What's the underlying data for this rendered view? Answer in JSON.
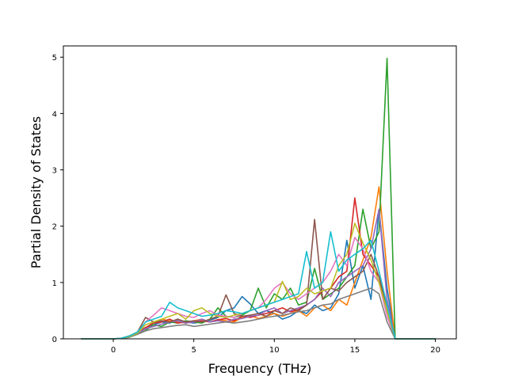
{
  "chart_data": {
    "type": "line",
    "title": "",
    "xlabel": "Frequency (THz)",
    "ylabel": "Partial Density of States",
    "xlim": [
      -3.1,
      21.3
    ],
    "ylim": [
      0,
      5.2
    ],
    "xticks": [
      0,
      5,
      10,
      15,
      20
    ],
    "yticks": [
      0,
      1,
      2,
      3,
      4,
      5
    ],
    "xtick_labels": [
      "0",
      "5",
      "10",
      "15",
      "20"
    ],
    "ytick_labels": [
      "0",
      "1",
      "2",
      "3",
      "4",
      "5"
    ],
    "grid": false,
    "legend": "none",
    "x": [
      -2,
      -1,
      0,
      0.5,
      1,
      1.5,
      2,
      2.5,
      3,
      3.5,
      4,
      4.5,
      5,
      5.5,
      6,
      6.5,
      7,
      7.5,
      8,
      8.5,
      9,
      9.5,
      10,
      10.5,
      11,
      11.5,
      12,
      12.5,
      13,
      13.5,
      14,
      14.5,
      15,
      15.5,
      16,
      16.5,
      17,
      17.5,
      18,
      19,
      20
    ],
    "series": [
      {
        "color": "#1f77b4",
        "values": [
          0,
          0,
          0,
          0.01,
          0.05,
          0.12,
          0.2,
          0.25,
          0.3,
          0.28,
          0.35,
          0.3,
          0.28,
          0.3,
          0.33,
          0.38,
          0.5,
          0.55,
          0.75,
          0.62,
          0.45,
          0.5,
          0.45,
          0.35,
          0.4,
          0.5,
          0.45,
          0.6,
          0.5,
          0.55,
          0.8,
          1.75,
          0.9,
          1.3,
          0.7,
          2.3,
          0.9,
          0,
          0,
          0,
          0
        ]
      },
      {
        "color": "#ff7f0e",
        "values": [
          0,
          0,
          0,
          0.01,
          0.04,
          0.1,
          0.18,
          0.3,
          0.35,
          0.32,
          0.3,
          0.28,
          0.32,
          0.35,
          0.3,
          0.34,
          0.32,
          0.3,
          0.38,
          0.42,
          0.36,
          0.4,
          0.45,
          0.4,
          0.45,
          0.5,
          0.4,
          0.55,
          0.6,
          0.5,
          0.7,
          0.6,
          1.0,
          1.4,
          1.8,
          2.7,
          1.2,
          0,
          0,
          0,
          0
        ]
      },
      {
        "color": "#2ca02c",
        "values": [
          0,
          0,
          0,
          0.01,
          0.03,
          0.08,
          0.15,
          0.25,
          0.22,
          0.3,
          0.28,
          0.32,
          0.3,
          0.28,
          0.35,
          0.55,
          0.4,
          0.38,
          0.42,
          0.5,
          0.9,
          0.55,
          0.8,
          0.7,
          0.9,
          0.6,
          0.65,
          1.25,
          0.7,
          0.8,
          0.9,
          1.1,
          1.3,
          2.3,
          1.6,
          1.9,
          4.98,
          0,
          0,
          0,
          0
        ]
      },
      {
        "color": "#d62728",
        "values": [
          0,
          0,
          0,
          0.01,
          0.04,
          0.09,
          0.2,
          0.28,
          0.3,
          0.35,
          0.28,
          0.3,
          0.3,
          0.32,
          0.3,
          0.34,
          0.36,
          0.32,
          0.4,
          0.38,
          0.42,
          0.45,
          0.5,
          0.55,
          0.48,
          0.52,
          0.6,
          0.7,
          0.85,
          0.9,
          1.1,
          1.2,
          2.5,
          1.5,
          1.3,
          1.1,
          0.6,
          0,
          0,
          0,
          0
        ]
      },
      {
        "color": "#9467bd",
        "values": [
          0,
          0,
          0,
          0.01,
          0.03,
          0.1,
          0.18,
          0.22,
          0.26,
          0.3,
          0.32,
          0.28,
          0.3,
          0.35,
          0.3,
          0.32,
          0.3,
          0.35,
          0.36,
          0.4,
          0.42,
          0.5,
          0.55,
          0.45,
          0.5,
          0.55,
          0.6,
          0.7,
          0.9,
          0.75,
          1.0,
          1.1,
          1.2,
          1.3,
          1.6,
          2.3,
          0.7,
          0,
          0,
          0,
          0
        ]
      },
      {
        "color": "#8c564b",
        "values": [
          0,
          0,
          0,
          0.01,
          0.05,
          0.12,
          0.38,
          0.3,
          0.32,
          0.3,
          0.35,
          0.3,
          0.32,
          0.3,
          0.35,
          0.4,
          0.78,
          0.45,
          0.4,
          0.42,
          0.45,
          0.4,
          0.5,
          0.45,
          0.55,
          0.5,
          0.6,
          2.12,
          0.7,
          0.9,
          0.85,
          1.0,
          1.1,
          1.2,
          1.5,
          1.1,
          0.5,
          0,
          0,
          0,
          0
        ]
      },
      {
        "color": "#e377c2",
        "values": [
          0,
          0,
          0,
          0.01,
          0.04,
          0.1,
          0.3,
          0.42,
          0.55,
          0.5,
          0.45,
          0.4,
          0.38,
          0.45,
          0.5,
          0.42,
          0.4,
          0.38,
          0.45,
          0.5,
          0.55,
          0.7,
          0.9,
          1.0,
          0.8,
          0.7,
          0.8,
          0.9,
          1.0,
          1.2,
          1.5,
          1.3,
          1.8,
          1.6,
          1.2,
          1.0,
          0.4,
          0,
          0,
          0,
          0
        ]
      },
      {
        "color": "#7f7f7f",
        "values": [
          0,
          0,
          0,
          0.01,
          0.03,
          0.08,
          0.14,
          0.18,
          0.2,
          0.22,
          0.24,
          0.25,
          0.22,
          0.24,
          0.26,
          0.28,
          0.3,
          0.28,
          0.3,
          0.32,
          0.35,
          0.38,
          0.4,
          0.42,
          0.45,
          0.48,
          0.5,
          0.55,
          0.6,
          0.62,
          0.7,
          0.75,
          0.8,
          0.85,
          0.9,
          0.8,
          0.3,
          0,
          0,
          0,
          0
        ]
      },
      {
        "color": "#bcbd22",
        "values": [
          0,
          0,
          0,
          0.01,
          0.04,
          0.1,
          0.25,
          0.3,
          0.35,
          0.4,
          0.45,
          0.35,
          0.5,
          0.55,
          0.45,
          0.4,
          0.38,
          0.42,
          0.45,
          0.5,
          0.55,
          0.6,
          0.65,
          1.02,
          0.7,
          0.75,
          0.9,
          0.8,
          0.85,
          0.9,
          1.3,
          1.5,
          2.05,
          1.7,
          1.4,
          1.0,
          0.5,
          0,
          0,
          0,
          0
        ]
      },
      {
        "color": "#17becf",
        "values": [
          0,
          0,
          0,
          0.01,
          0.05,
          0.12,
          0.3,
          0.35,
          0.4,
          0.65,
          0.55,
          0.5,
          0.45,
          0.4,
          0.42,
          0.45,
          0.5,
          0.48,
          0.45,
          0.5,
          0.55,
          0.6,
          0.65,
          0.7,
          0.75,
          0.8,
          1.55,
          0.9,
          1.0,
          1.9,
          1.2,
          1.4,
          1.5,
          1.6,
          1.75,
          1.2,
          0.6,
          0,
          0,
          0,
          0
        ]
      }
    ]
  }
}
